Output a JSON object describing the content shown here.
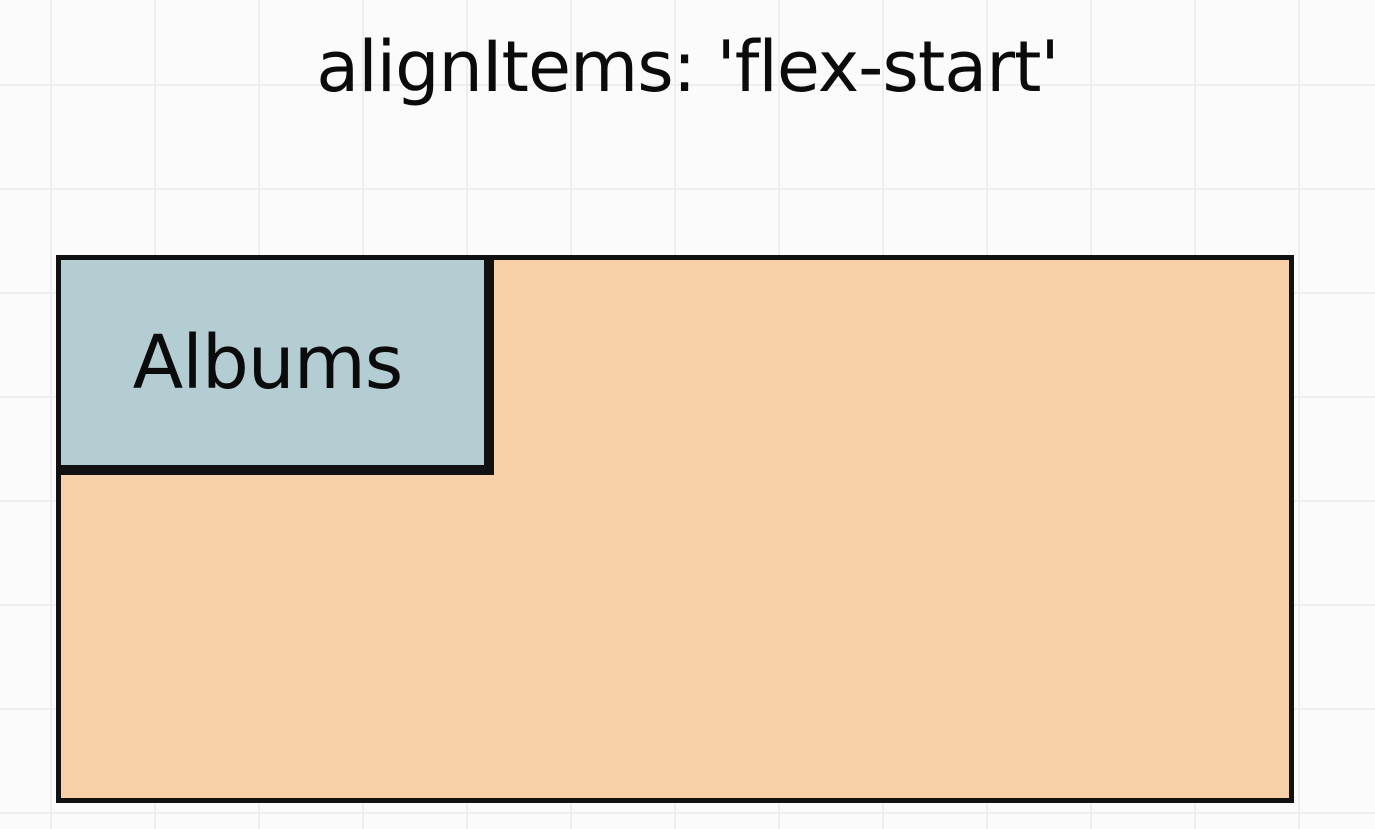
{
  "diagram": {
    "title": "alignItems: 'flex-start'",
    "item_label": "Albums",
    "colors": {
      "container_fill": "#f7d0a7",
      "item_fill": "#b3cdd2",
      "outline": "#111111",
      "background": "#fbfbfb",
      "grid": "#eeeeee"
    }
  }
}
